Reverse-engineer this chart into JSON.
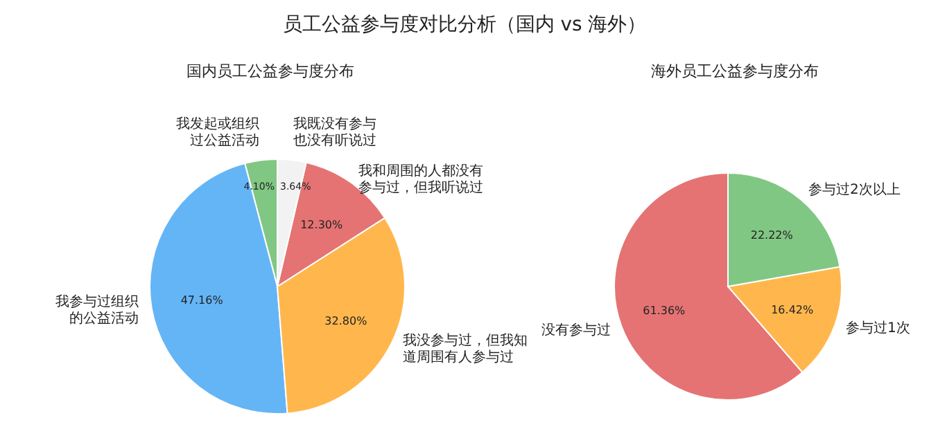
{
  "chart_data": [
    {
      "type": "other",
      "title": "员工公益参与度对比分析（国内 vs 海外）"
    },
    {
      "type": "pie",
      "title": "国内员工公益参与度分布",
      "categories": [
        "我发起或组织过公益活动",
        "我参与过组织的公益活动",
        "我没参与过，但我知道周围有人参与过",
        "我和周围的人都没有参与过，但我听说过",
        "我既没有参与也没有听说过"
      ],
      "values": [
        4.1,
        47.16,
        32.8,
        12.3,
        3.64
      ],
      "value_labels": [
        "4.10%",
        "47.16%",
        "32.80%",
        "12.30%",
        "3.64%"
      ],
      "colors": [
        "#81c784",
        "#64b5f6",
        "#ffb74d",
        "#e57373",
        "#f2f2f2"
      ],
      "legend": false
    },
    {
      "type": "pie",
      "title": "海外员工公益参与度分布",
      "categories": [
        "没有参与过",
        "参与过1次",
        "参与过2次以上"
      ],
      "values": [
        61.36,
        16.42,
        22.22
      ],
      "value_labels": [
        "61.36%",
        "16.42%",
        "22.22%"
      ],
      "colors": [
        "#e57373",
        "#ffb74d",
        "#81c784"
      ],
      "legend": false
    }
  ]
}
